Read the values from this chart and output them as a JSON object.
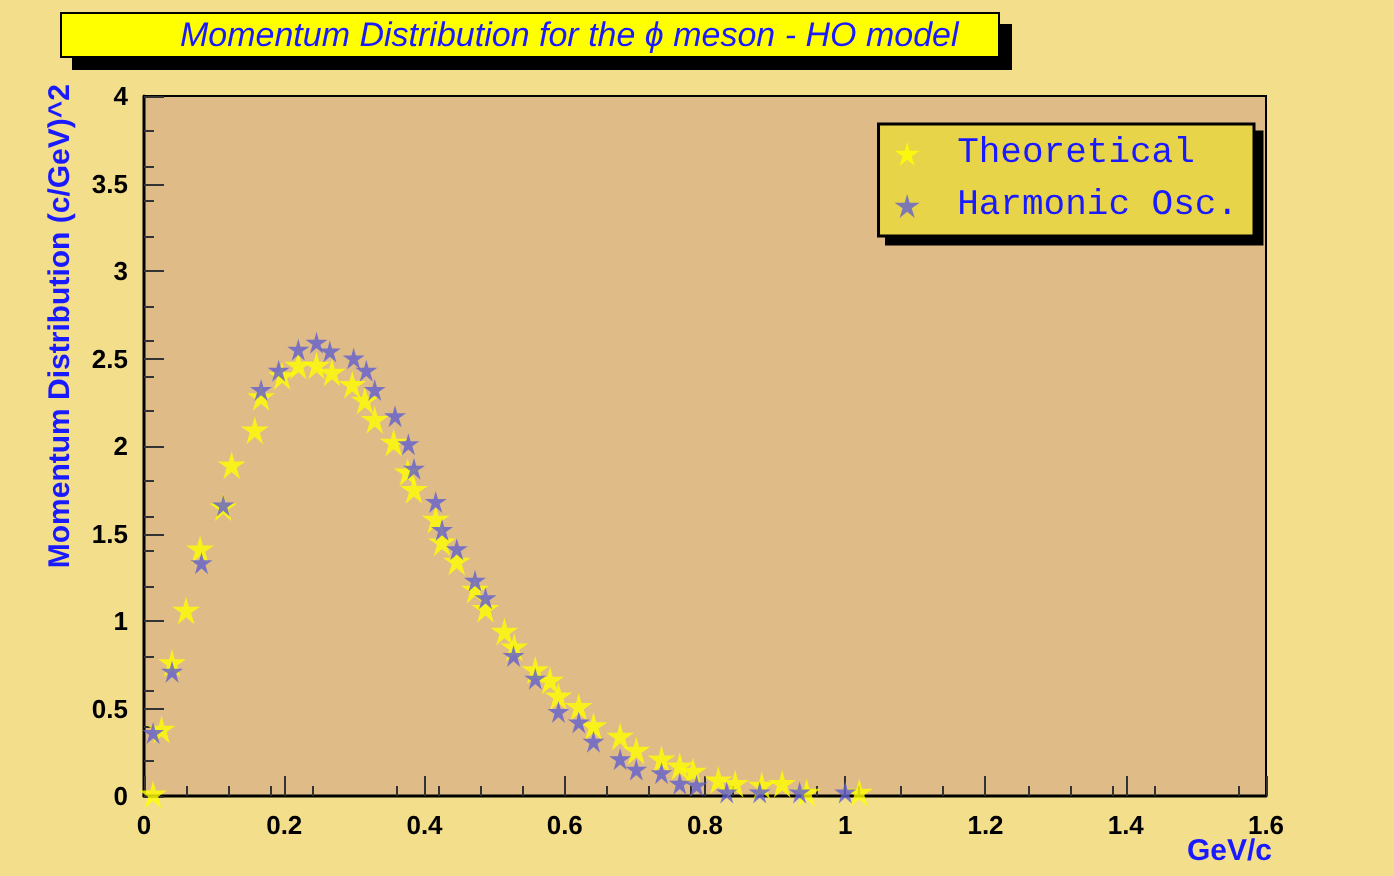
{
  "chart_data": {
    "type": "scatter",
    "title": "Momentum Distribution for the ϕ meson - HO model",
    "xlabel": "GeV/c",
    "ylabel": "Momentum Distribution (c/GeV)^2",
    "xlim": [
      0,
      1.6
    ],
    "xticks": [
      0,
      0.2,
      0.4,
      0.6,
      0.8,
      1,
      1.2,
      1.4,
      1.6
    ],
    "ylim": [
      0,
      4
    ],
    "yticks": [
      0,
      0.5,
      1,
      1.5,
      2,
      2.5,
      3,
      3.5,
      4
    ],
    "legend": "top right",
    "grid": false,
    "marker": "star",
    "series": [
      {
        "name": "Theoretical",
        "color": "#ffff00",
        "x": [
          0.013,
          0.025,
          0.04,
          0.06,
          0.08,
          0.113,
          0.125,
          0.158,
          0.167,
          0.197,
          0.22,
          0.246,
          0.268,
          0.297,
          0.315,
          0.329,
          0.356,
          0.376,
          0.385,
          0.416,
          0.425,
          0.446,
          0.472,
          0.487,
          0.514,
          0.528,
          0.558,
          0.579,
          0.591,
          0.62,
          0.641,
          0.679,
          0.702,
          0.738,
          0.764,
          0.783,
          0.819,
          0.843,
          0.881,
          0.91,
          0.945,
          1.02
        ],
        "values": [
          0.01,
          0.38,
          0.76,
          1.06,
          1.41,
          1.65,
          1.89,
          2.09,
          2.28,
          2.4,
          2.46,
          2.46,
          2.42,
          2.35,
          2.26,
          2.15,
          2.02,
          1.85,
          1.75,
          1.58,
          1.45,
          1.34,
          1.18,
          1.07,
          0.94,
          0.85,
          0.72,
          0.66,
          0.57,
          0.51,
          0.4,
          0.34,
          0.26,
          0.21,
          0.17,
          0.14,
          0.09,
          0.07,
          0.06,
          0.07,
          0.02,
          0.02
        ]
      },
      {
        "name": "Harmonic Osc.",
        "color": "#6060d0",
        "x": [
          0.013,
          0.04,
          0.082,
          0.113,
          0.167,
          0.192,
          0.22,
          0.246,
          0.265,
          0.299,
          0.317,
          0.329,
          0.358,
          0.377,
          0.385,
          0.416,
          0.425,
          0.446,
          0.472,
          0.487,
          0.527,
          0.558,
          0.591,
          0.62,
          0.641,
          0.679,
          0.702,
          0.738,
          0.764,
          0.788,
          0.831,
          0.878,
          0.935,
          1.0
        ],
        "values": [
          0.36,
          0.71,
          1.33,
          1.66,
          2.32,
          2.43,
          2.55,
          2.59,
          2.54,
          2.5,
          2.43,
          2.32,
          2.17,
          2.01,
          1.87,
          1.68,
          1.52,
          1.41,
          1.23,
          1.13,
          0.8,
          0.67,
          0.48,
          0.42,
          0.31,
          0.21,
          0.15,
          0.13,
          0.07,
          0.06,
          0.02,
          0.02,
          0.02,
          0.02
        ]
      }
    ]
  }
}
